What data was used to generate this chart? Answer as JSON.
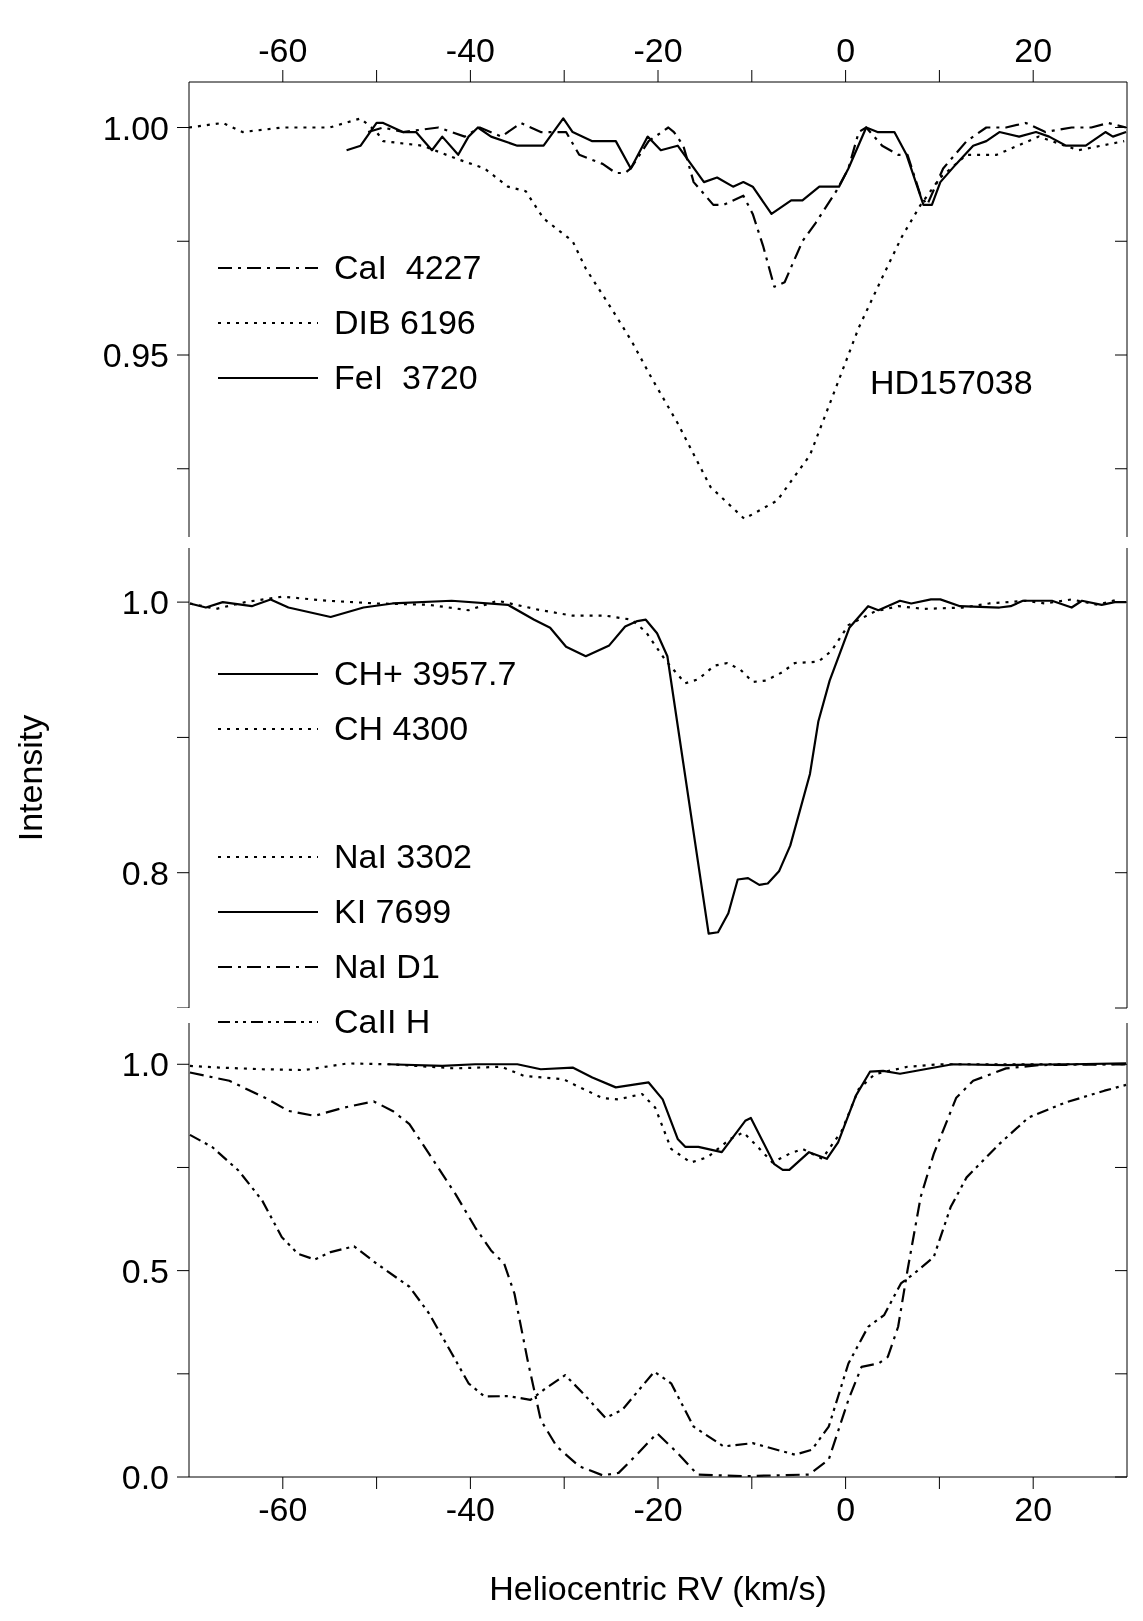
{
  "chart_data": [
    {
      "type": "line",
      "xlim": [
        -70,
        30
      ],
      "xticks": [
        -60,
        {
          "value": -50,
          "label": null
        },
        -40,
        {
          "value": -30,
          "label": null
        },
        -20,
        {
          "value": -10,
          "label": null
        },
        0,
        {
          "value": 10,
          "label": null
        },
        20
      ],
      "ylim": [
        0.91,
        1.01
      ],
      "yticks": [
        {
          "value": 0.925,
          "label": null
        },
        0.95,
        {
          "value": 0.975,
          "label": null
        },
        {
          "value": 1,
          "label": "1.00"
        }
      ],
      "legend": "left",
      "annotations": [
        "HD157038"
      ],
      "series": [
        {
          "name": "CaI  4227",
          "color": "#000000",
          "line_style": "dashdot",
          "x": [
            -50.9,
            -49.3,
            -47.2,
            -43.4,
            -40.6,
            -39,
            -36.7,
            -34.6,
            -32.5,
            -29.8,
            -28.4,
            -25.9,
            -24.5,
            -23.5,
            -22.9,
            -21,
            -18.9,
            -18.3,
            -17.3,
            -16.2,
            -14.1,
            -13,
            -10.9,
            -9.9,
            -8.8,
            -7.6,
            -6.5,
            -4.6,
            -3.2,
            -1.0,
            0.3,
            1.4,
            2.2,
            3.9,
            5.6,
            6.6,
            8,
            8.7,
            10.4,
            12.9,
            15,
            17.1,
            19.2,
            21.3,
            24.1,
            26.2,
            28,
            29.9
          ],
          "values": [
            0.999,
            1.0,
            0.999,
            1.0,
            0.998,
            1.0,
            0.998,
            1.001,
            0.999,
            0.999,
            0.994,
            0.992,
            0.99,
            0.99,
            0.991,
            0.997,
            1.0,
            0.999,
            0.996,
            0.988,
            0.983,
            0.983,
            0.985,
            0.981,
            0.974,
            0.965,
            0.966,
            0.975,
            0.979,
            0.986,
            0.991,
            0.999,
            1.0,
            0.996,
            0.994,
            0.994,
            0.985,
            0.983,
            0.991,
            0.997,
            1.0,
            1.0,
            1.001,
            0.999,
            1.0,
            1.0,
            1.001,
            1.0
          ]
        },
        {
          "name": "DIB 6196",
          "color": "#000000",
          "line_style": "dotted",
          "x": [
            -70,
            -66.4,
            -64.3,
            -60,
            -55,
            -51.7,
            -50,
            -49.3,
            -45.1,
            -41.3,
            -38.5,
            -36,
            -34.1,
            -32.2,
            -29.1,
            -27.7,
            -24.9,
            -22.8,
            -20.7,
            -17.9,
            -14.4,
            -10.8,
            -7.3,
            -3.8,
            -1.0,
            1.4,
            3.9,
            6.0,
            8.0,
            10.1,
            12.9,
            16.1,
            20.6,
            24.8,
            29.7
          ],
          "values": [
            1.0,
            1.001,
            0.999,
            1.0,
            1.0,
            1.002,
            0.999,
            0.997,
            0.996,
            0.993,
            0.991,
            0.987,
            0.986,
            0.98,
            0.975,
            0.969,
            0.96,
            0.953,
            0.945,
            0.935,
            0.921,
            0.914,
            0.918,
            0.928,
            0.943,
            0.956,
            0.967,
            0.976,
            0.983,
            0.989,
            0.994,
            0.994,
            0.998,
            0.995,
            0.997
          ]
        },
        {
          "name": "FeI  3720",
          "color": "#000000",
          "line_style": "solid",
          "x": [
            -53.2,
            -51.7,
            -50,
            -49.3,
            -47.2,
            -45.8,
            -44.1,
            -43,
            -41.3,
            -40.2,
            -39.2,
            -37.8,
            -35,
            -32.2,
            -30.1,
            -29.1,
            -27,
            -24.5,
            -22.9,
            -21.1,
            -19.7,
            -17.9,
            -15.1,
            -13.7,
            -12,
            -10.9,
            -9.9,
            -7.9,
            -5.8,
            -4.6,
            -2.8,
            -1.8,
            -0.7,
            0.3,
            2.2,
            3.4,
            5.2,
            6.5,
            8.3,
            9.2,
            10.1,
            11.8,
            13.6,
            15,
            16.4,
            18.5,
            20.3,
            21.7,
            23.5,
            25.6,
            27.7,
            28.5,
            29.9
          ],
          "values": [
            0.995,
            0.996,
            1.001,
            1.001,
            0.999,
            0.999,
            0.995,
            0.998,
            0.994,
            0.998,
            1.0,
            0.998,
            0.996,
            0.996,
            1.002,
            0.999,
            0.997,
            0.997,
            0.991,
            0.998,
            0.995,
            0.996,
            0.988,
            0.989,
            0.987,
            0.988,
            0.987,
            0.981,
            0.984,
            0.984,
            0.987,
            0.987,
            0.987,
            0.991,
            1.0,
            0.999,
            0.999,
            0.994,
            0.983,
            0.983,
            0.988,
            0.992,
            0.996,
            0.997,
            0.999,
            0.998,
            0.999,
            0.998,
            0.996,
            0.996,
            0.999,
            0.998,
            0.999
          ]
        }
      ]
    },
    {
      "type": "line",
      "xlim": [
        -70,
        30
      ],
      "tick_labels": "y",
      "ylim": [
        0.7,
        1.04
      ],
      "yticks": [
        {
          "value": 0.7,
          "label": null
        },
        0.8,
        {
          "value": 0.9,
          "label": null
        },
        {
          "value": 1,
          "label": "1.0"
        }
      ],
      "ylabel": "Intensity",
      "legend": "left",
      "series": [
        {
          "name": "CH+ 3957.7",
          "color": "#000000",
          "line_style": "solid",
          "x": [
            -69.9,
            -68.2,
            -66.4,
            -63.3,
            -61.3,
            -59.4,
            -54.9,
            -51.4,
            -48.3,
            -42,
            -36,
            -33.2,
            -31.5,
            -29.8,
            -27.7,
            -25.2,
            -23.5,
            -22.2,
            -21.3,
            -20.1,
            -19,
            -14.6,
            -13.6,
            -12.5,
            -11.5,
            -10.4,
            -9.2,
            -8.3,
            -7.1,
            -5.9,
            -3.8,
            -2.9,
            -1.7,
            0.4,
            2.4,
            3.5,
            5.8,
            7,
            9.1,
            10.1,
            12.2,
            16.4,
            17.6,
            18.9,
            22,
            24.1,
            25.2,
            27.3,
            28.7,
            29.9
          ],
          "values": [
            0.999,
            0.996,
            1.0,
            0.997,
            1.002,
            0.996,
            0.989,
            0.996,
            0.999,
            1.001,
            0.998,
            0.987,
            0.981,
            0.967,
            0.96,
            0.968,
            0.982,
            0.986,
            0.987,
            0.977,
            0.96,
            0.755,
            0.756,
            0.77,
            0.795,
            0.796,
            0.791,
            0.792,
            0.801,
            0.82,
            0.873,
            0.912,
            0.942,
            0.981,
            0.997,
            0.994,
            1.001,
            0.999,
            1.002,
            1.002,
            0.997,
            0.996,
            0.997,
            1.001,
            1.001,
            0.996,
            1.001,
            0.998,
            1.0,
            1.0
          ]
        },
        {
          "name": "CH 4300",
          "color": "#000000",
          "line_style": "dotted",
          "x": [
            -69.9,
            -67.1,
            -64,
            -60.1,
            -55.2,
            -50,
            -44.4,
            -40.2,
            -37.1,
            -32.5,
            -29.1,
            -25.6,
            -22.8,
            -21.3,
            -19.2,
            -17.1,
            -15.7,
            -14,
            -12.6,
            -11.2,
            -9.9,
            -8.5,
            -6.8,
            -5.4,
            -2.9,
            -1.5,
            0.3,
            3.1,
            5.6,
            8.4,
            12.5,
            15.3,
            19.2,
            21.3,
            24.1,
            26.9,
            29
          ],
          "values": [
            0.999,
            0.995,
            1.0,
            1.004,
            1.001,
            0.999,
            0.998,
            0.994,
            1.001,
            0.994,
            0.99,
            0.99,
            0.987,
            0.978,
            0.957,
            0.94,
            0.943,
            0.953,
            0.955,
            0.95,
            0.941,
            0.942,
            0.948,
            0.955,
            0.956,
            0.964,
            0.983,
            0.993,
            0.997,
            0.995,
            0.996,
            0.999,
            1.001,
            0.999,
            1.002,
            0.998,
            1.002
          ]
        }
      ]
    },
    {
      "type": "line",
      "xlim": [
        -70,
        30
      ],
      "xticks": [
        -60,
        {
          "value": -50,
          "label": null
        },
        -40,
        {
          "value": -30,
          "label": null
        },
        -20,
        {
          "value": -10,
          "label": null
        },
        0,
        {
          "value": 10,
          "label": null
        },
        20
      ],
      "xlabel": "Heliocentric RV (km/s)",
      "ylim": [
        0,
        1.1
      ],
      "yticks": [
        {
          "value": 0,
          "label": "0.0"
        },
        {
          "value": 0.25,
          "label": null
        },
        0.5,
        {
          "value": 0.75,
          "label": null
        },
        {
          "value": 1,
          "label": "1.0"
        }
      ],
      "legend": "top left",
      "series": [
        {
          "name": "NaI 3302",
          "color": "#000000",
          "line_style": "dotted",
          "x": [
            -69.9,
            -66.8,
            -62.2,
            -57.7,
            -53.1,
            -48.6,
            -41.6,
            -36.7,
            -34.3,
            -30.1,
            -28.7,
            -25.9,
            -24.2,
            -21.7,
            -20.3,
            -18.6,
            -16.5,
            -14.7,
            -12.3,
            -10.9,
            -9.5,
            -7.8,
            -6,
            -4.6,
            -2.5,
            -0.4,
            1.4,
            3.1,
            6.6,
            10.1,
            29.9
          ],
          "values": [
            0.996,
            0.992,
            0.988,
            0.986,
            1.002,
            1.0,
            0.99,
            0.994,
            0.972,
            0.964,
            0.948,
            0.918,
            0.915,
            0.928,
            0.895,
            0.795,
            0.762,
            0.775,
            0.819,
            0.835,
            0.803,
            0.762,
            0.783,
            0.795,
            0.771,
            0.839,
            0.94,
            0.976,
            0.994,
            1.0,
            1.0
          ]
        },
        {
          "name": "KI 7699",
          "color": "#000000",
          "line_style": "solid",
          "x": [
            -48.8,
            -43,
            -39.5,
            -35,
            -32.5,
            -29.1,
            -27,
            -24.5,
            -21,
            -19.5,
            -17.9,
            -17.1,
            -15.7,
            -13.2,
            -10.7,
            -10.1,
            -7.6,
            -6.7,
            -6,
            -3.9,
            -2,
            -0.8,
            1.1,
            2.6,
            4,
            5.8,
            11.4,
            17.1,
            24.1,
            29.9
          ],
          "values": [
            1.0,
            0.996,
            1.0,
            1.0,
            0.988,
            0.992,
            0.968,
            0.944,
            0.956,
            0.915,
            0.819,
            0.8,
            0.8,
            0.787,
            0.863,
            0.87,
            0.758,
            0.744,
            0.744,
            0.787,
            0.771,
            0.811,
            0.924,
            0.982,
            0.984,
            0.977,
            1.0,
            0.998,
            1.0,
            1.002
          ]
        },
        {
          "name": "NaI D1",
          "color": "#000000",
          "line_style": "dashdot",
          "x": [
            -69.9,
            -65.7,
            -61.9,
            -59.4,
            -56.6,
            -53.5,
            -50.3,
            -48.3,
            -46.5,
            -44.4,
            -41.6,
            -39.5,
            -37.8,
            -36.4,
            -35.3,
            -33.9,
            -32.5,
            -30.8,
            -28.4,
            -25.9,
            -24.2,
            -22.1,
            -20.1,
            -17.9,
            -15.8,
            -10.9,
            -3.9,
            -1.8,
            0.3,
            1.7,
            3.5,
            4.5,
            5.6,
            6.6,
            8,
            9.4,
            11.8,
            13.6,
            17.1,
            20.6,
            29.9
          ],
          "values": [
            0.98,
            0.96,
            0.919,
            0.887,
            0.875,
            0.895,
            0.91,
            0.887,
            0.855,
            0.783,
            0.686,
            0.605,
            0.549,
            0.517,
            0.444,
            0.283,
            0.138,
            0.074,
            0.026,
            0.004,
            0.01,
            0.058,
            0.106,
            0.058,
            0.006,
            0.002,
            0.006,
            0.042,
            0.187,
            0.267,
            0.275,
            0.291,
            0.364,
            0.501,
            0.678,
            0.783,
            0.919,
            0.96,
            0.99,
            0.998,
            1.0
          ]
        },
        {
          "name": "CaII H",
          "color": "#000000",
          "line_style": "dashdotdot",
          "x": [
            -69.9,
            -67.5,
            -64.7,
            -62.2,
            -60.1,
            -58.4,
            -56.6,
            -54.9,
            -52.4,
            -50,
            -46.5,
            -44.4,
            -42,
            -40.2,
            -38.5,
            -36,
            -33.6,
            -32.2,
            -29.9,
            -28,
            -25.6,
            -23.8,
            -20.4,
            -18.6,
            -16.2,
            -13,
            -9.9,
            -5.4,
            -3.6,
            -1.8,
            0.3,
            2.4,
            4.1,
            5.9,
            7.3,
            9.4,
            11.2,
            12.9,
            16.4,
            19.5,
            23.4,
            27.6,
            29.9
          ],
          "values": [
            0.829,
            0.799,
            0.742,
            0.67,
            0.581,
            0.541,
            0.527,
            0.545,
            0.559,
            0.517,
            0.461,
            0.396,
            0.3,
            0.227,
            0.195,
            0.196,
            0.187,
            0.211,
            0.247,
            0.203,
            0.143,
            0.163,
            0.255,
            0.227,
            0.122,
            0.074,
            0.082,
            0.054,
            0.066,
            0.122,
            0.275,
            0.364,
            0.392,
            0.469,
            0.493,
            0.533,
            0.654,
            0.726,
            0.807,
            0.871,
            0.907,
            0.936,
            0.95
          ]
        }
      ]
    }
  ]
}
